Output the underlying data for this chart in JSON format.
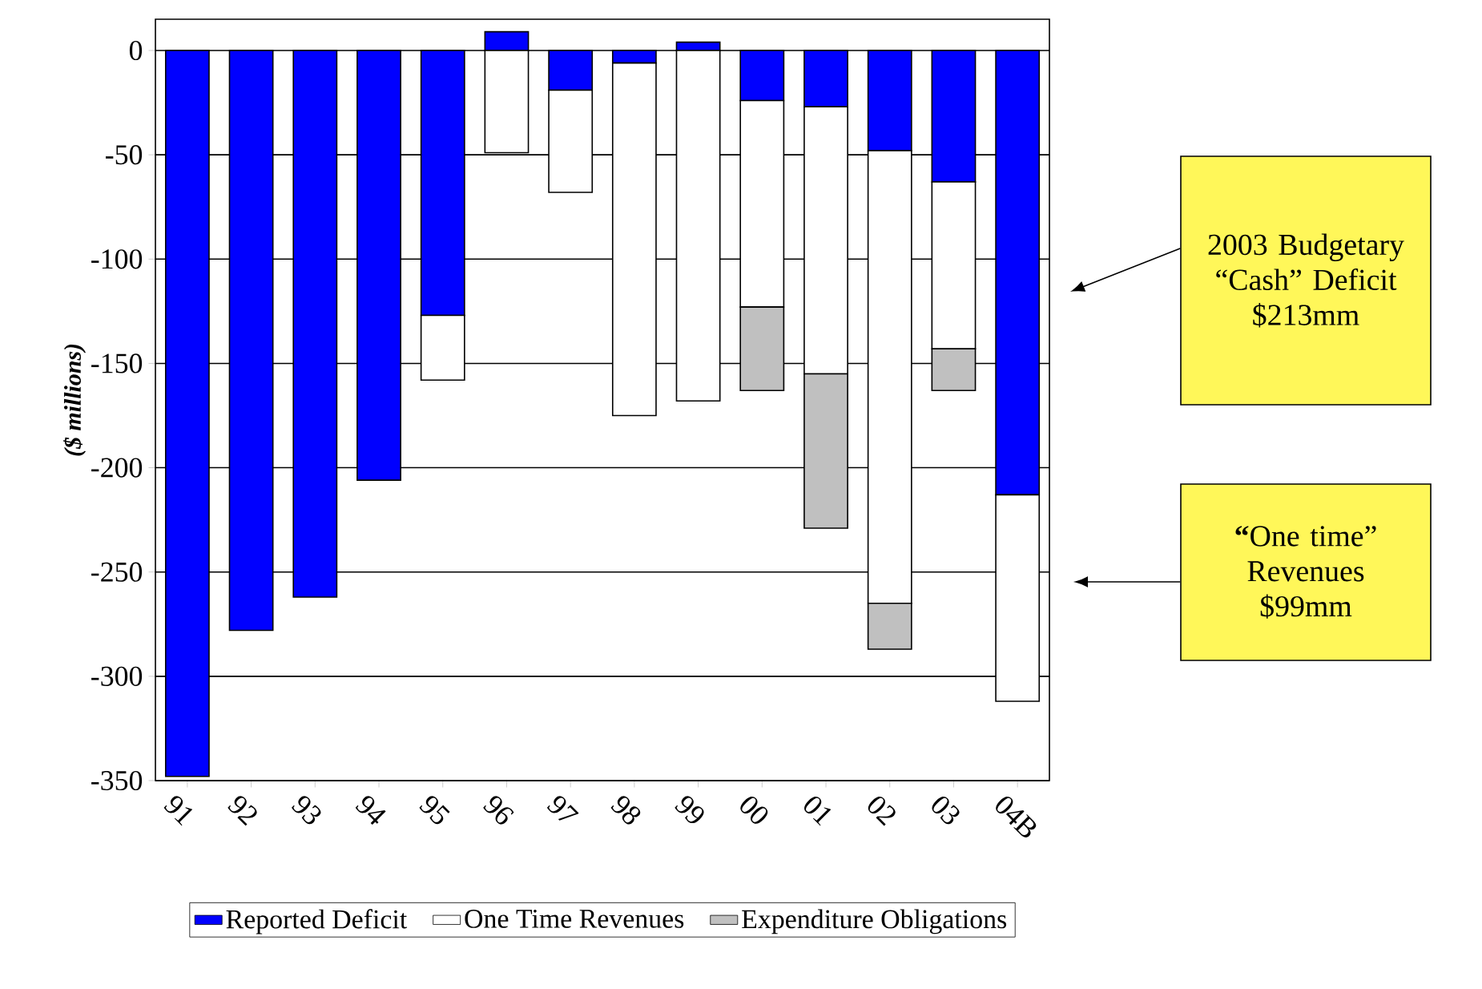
{
  "chart_data": {
    "type": "bar",
    "stacked": true,
    "categories": [
      "91",
      "92",
      "93",
      "94",
      "95",
      "96",
      "97",
      "98",
      "99",
      "00",
      "01",
      "02",
      "03",
      "04B"
    ],
    "series": [
      {
        "name": "Reported Deficit",
        "color": "#0000ff",
        "values": [
          -348,
          -278,
          -262,
          -206,
          -127,
          9,
          -19,
          -6,
          4,
          -24,
          -27,
          -48,
          -63,
          -213
        ]
      },
      {
        "name": "One Time Revenues",
        "color": "#ffffff",
        "values": [
          null,
          null,
          null,
          null,
          -31,
          -49,
          -49,
          -169,
          -168,
          -99,
          -128,
          -217,
          -80,
          -99
        ]
      },
      {
        "name": "Expenditure Obligations",
        "color": "#c0c0c0",
        "values": [
          null,
          null,
          null,
          null,
          null,
          null,
          null,
          null,
          null,
          -40,
          -74,
          -22,
          -20,
          null
        ]
      }
    ],
    "ylabel": "($ millions)",
    "ylim": [
      -350,
      15
    ],
    "yticks": [
      -350,
      -300,
      -250,
      -200,
      -150,
      -100,
      -50,
      0
    ],
    "grid": "y",
    "legend": "bottom",
    "annotations": [
      "2003 Budgetary “Cash” Deficit $213mm",
      "**“**One time” Revenues $99mm"
    ]
  }
}
